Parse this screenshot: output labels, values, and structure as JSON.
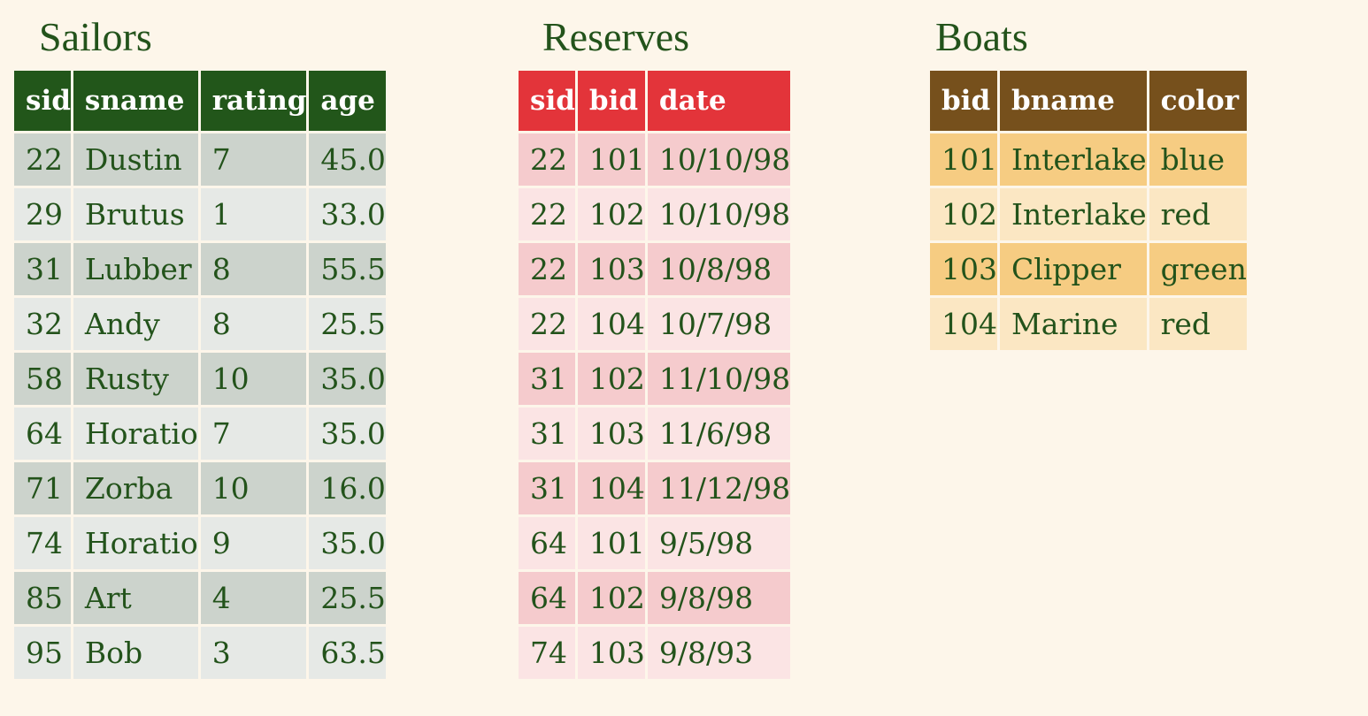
{
  "colors": {
    "background": "#fdf6ea",
    "text": "#23531b",
    "sailors_header": "#22561a",
    "sailors_row_a": "#ccd3cc",
    "sailors_row_b": "#e6e9e6",
    "reserves_header": "#e3343a",
    "reserves_row_a": "#f5cbcd",
    "reserves_row_b": "#fbe4e4",
    "boats_header": "#76501c",
    "boats_row_a": "#f6cc82",
    "boats_row_b": "#fbe7c3"
  },
  "tables": [
    {
      "key": "sailors",
      "title": "Sailors",
      "columns": [
        "sid",
        "sname",
        "rating",
        "age"
      ],
      "rows": [
        [
          "22",
          "Dustin",
          "7",
          "45.0"
        ],
        [
          "29",
          "Brutus",
          "1",
          "33.0"
        ],
        [
          "31",
          "Lubber",
          "8",
          "55.5"
        ],
        [
          "32",
          "Andy",
          "8",
          "25.5"
        ],
        [
          "58",
          "Rusty",
          "10",
          "35.0"
        ],
        [
          "64",
          "Horatio",
          "7",
          "35.0"
        ],
        [
          "71",
          "Zorba",
          "10",
          "16.0"
        ],
        [
          "74",
          "Horatio",
          "9",
          "35.0"
        ],
        [
          "85",
          "Art",
          "4",
          "25.5"
        ],
        [
          "95",
          "Bob",
          "3",
          "63.5"
        ]
      ]
    },
    {
      "key": "reserves",
      "title": "Reserves",
      "columns": [
        "sid",
        "bid",
        "date"
      ],
      "rows": [
        [
          "22",
          "101",
          "10/10/98"
        ],
        [
          "22",
          "102",
          "10/10/98"
        ],
        [
          "22",
          "103",
          "10/8/98"
        ],
        [
          "22",
          "104",
          "10/7/98"
        ],
        [
          "31",
          "102",
          "11/10/98"
        ],
        [
          "31",
          "103",
          "11/6/98"
        ],
        [
          "31",
          "104",
          "11/12/98"
        ],
        [
          "64",
          "101",
          "9/5/98"
        ],
        [
          "64",
          "102",
          "9/8/98"
        ],
        [
          "74",
          "103",
          "9/8/93"
        ]
      ]
    },
    {
      "key": "boats",
      "title": "Boats",
      "columns": [
        "bid",
        "bname",
        "color"
      ],
      "rows": [
        [
          "101",
          "Interlake",
          "blue"
        ],
        [
          "102",
          "Interlake",
          "red"
        ],
        [
          "103",
          "Clipper",
          "green"
        ],
        [
          "104",
          "Marine",
          "red"
        ]
      ]
    }
  ]
}
